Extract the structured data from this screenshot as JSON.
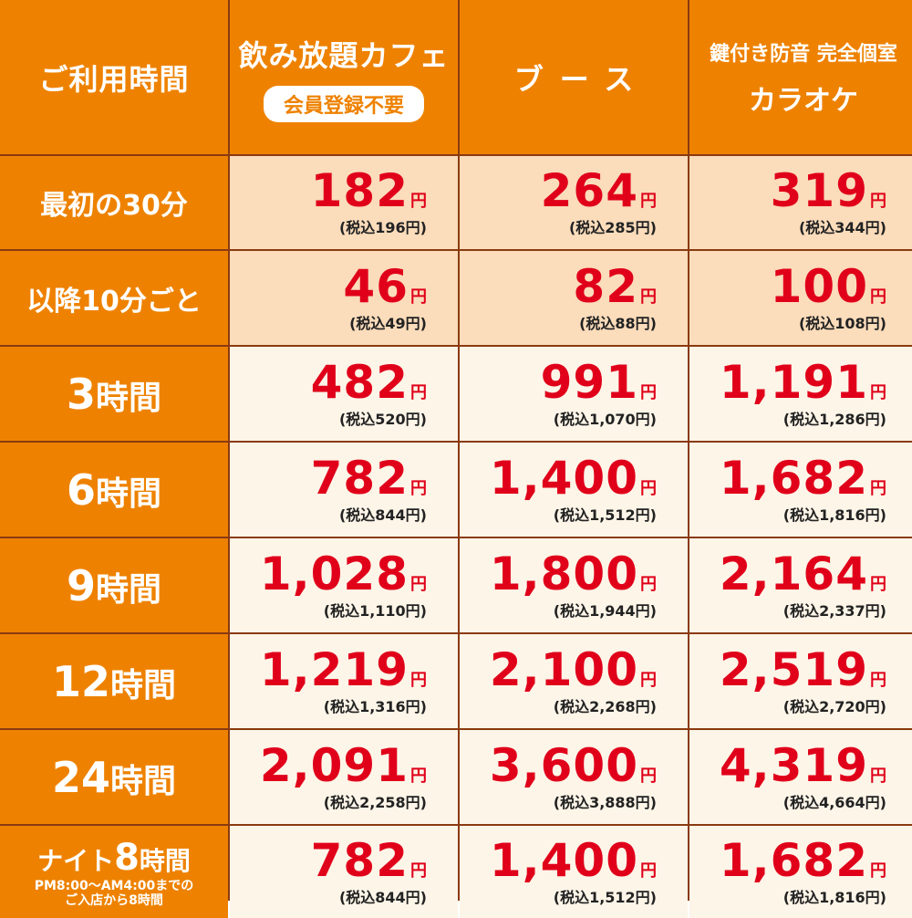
{
  "header": {
    "usage_time": "ご利用時間",
    "cafe_title": "飲み放題カフェ",
    "cafe_badge": "会員登録不要",
    "booth_title": "ブース",
    "karaoke_sub": "鍵付き防音 完全個室",
    "karaoke_title": "カラオケ"
  },
  "currency": "円",
  "rows": [
    {
      "label": "最初の30分",
      "cafe": {
        "price": "182",
        "tax": "(税込196円)"
      },
      "booth": {
        "price": "264",
        "tax": "(税込285円)"
      },
      "karaoke": {
        "price": "319",
        "tax": "(税込344円)"
      }
    },
    {
      "label": "以降10分ごと",
      "cafe": {
        "price": "46",
        "tax": "(税込49円)"
      },
      "booth": {
        "price": "82",
        "tax": "(税込88円)"
      },
      "karaoke": {
        "price": "100",
        "tax": "(税込108円)"
      }
    },
    {
      "num": "3",
      "unit": "時間",
      "cafe": {
        "price": "482",
        "tax": "(税込520円)"
      },
      "booth": {
        "price": "991",
        "tax": "(税込1,070円)"
      },
      "karaoke": {
        "price": "1,191",
        "tax": "(税込1,286円)"
      }
    },
    {
      "num": "6",
      "unit": "時間",
      "cafe": {
        "price": "782",
        "tax": "(税込844円)"
      },
      "booth": {
        "price": "1,400",
        "tax": "(税込1,512円)"
      },
      "karaoke": {
        "price": "1,682",
        "tax": "(税込1,816円)"
      }
    },
    {
      "num": "9",
      "unit": "時間",
      "cafe": {
        "price": "1,028",
        "tax": "(税込1,110円)"
      },
      "booth": {
        "price": "1,800",
        "tax": "(税込1,944円)"
      },
      "karaoke": {
        "price": "2,164",
        "tax": "(税込2,337円)"
      }
    },
    {
      "num": "12",
      "unit": "時間",
      "cafe": {
        "price": "1,219",
        "tax": "(税込1,316円)"
      },
      "booth": {
        "price": "2,100",
        "tax": "(税込2,268円)"
      },
      "karaoke": {
        "price": "2,519",
        "tax": "(税込2,720円)"
      }
    },
    {
      "num": "24",
      "unit": "時間",
      "cafe": {
        "price": "2,091",
        "tax": "(税込2,258円)"
      },
      "booth": {
        "price": "3,600",
        "tax": "(税込3,888円)"
      },
      "karaoke": {
        "price": "4,319",
        "tax": "(税込4,664円)"
      }
    },
    {
      "night_prefix": "ナイト",
      "num": "8",
      "unit": "時間",
      "note_line1": "PM8:00〜AM4:00までの",
      "note_line2": "ご入店から8時間",
      "cafe": {
        "price": "782",
        "tax": "(税込844円)"
      },
      "booth": {
        "price": "1,400",
        "tax": "(税込1,512円)"
      },
      "karaoke": {
        "price": "1,682",
        "tax": "(税込1,816円)"
      }
    }
  ],
  "colors": {
    "header_orange": "#ee8200",
    "price_red": "#e0001a",
    "peach_bg": "#fbdcbb",
    "cream_bg": "#fdf5e8"
  }
}
